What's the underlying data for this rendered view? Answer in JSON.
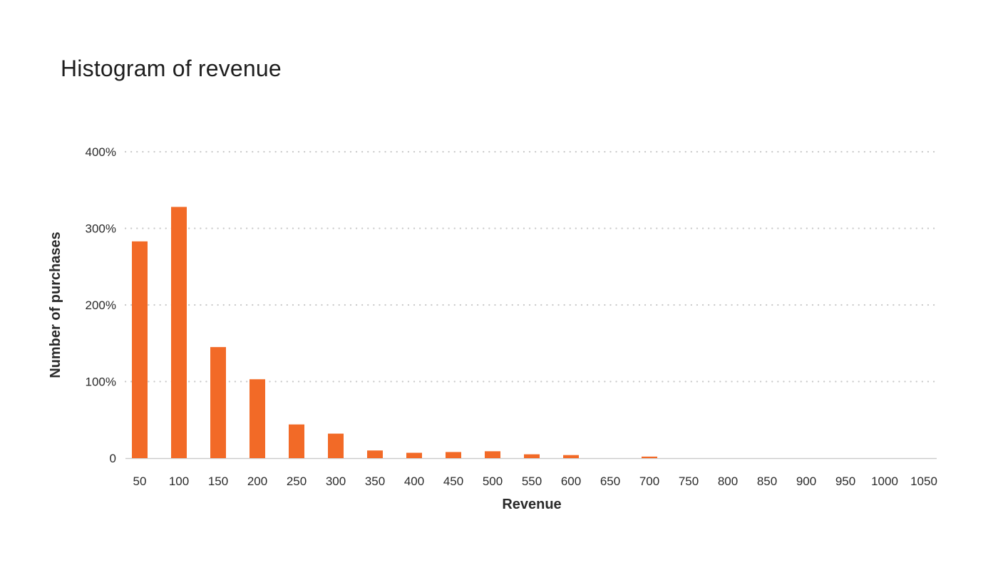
{
  "chart_data": {
    "type": "bar",
    "title": "Histogram of revenue",
    "xlabel": "Revenue",
    "ylabel": "Number of purchases",
    "categories": [
      "50",
      "100",
      "150",
      "200",
      "250",
      "300",
      "350",
      "400",
      "450",
      "500",
      "550",
      "600",
      "650",
      "700",
      "750",
      "800",
      "850",
      "900",
      "950",
      "1000",
      "1050"
    ],
    "values": [
      283,
      328,
      145,
      103,
      44,
      32,
      10,
      7,
      8,
      9,
      5,
      4,
      0,
      2,
      0,
      0,
      0,
      0,
      0,
      0,
      0
    ],
    "ylim": [
      0,
      400
    ],
    "yticks": [
      0,
      100,
      200,
      300,
      400
    ],
    "ytick_labels": [
      "0",
      "100%",
      "200%",
      "300%",
      "400%"
    ],
    "grid": true,
    "grid_style": "dotted",
    "bar_color": "#f26a27",
    "grid_color": "#c8c8c8",
    "axis_color": "#cccccc"
  }
}
